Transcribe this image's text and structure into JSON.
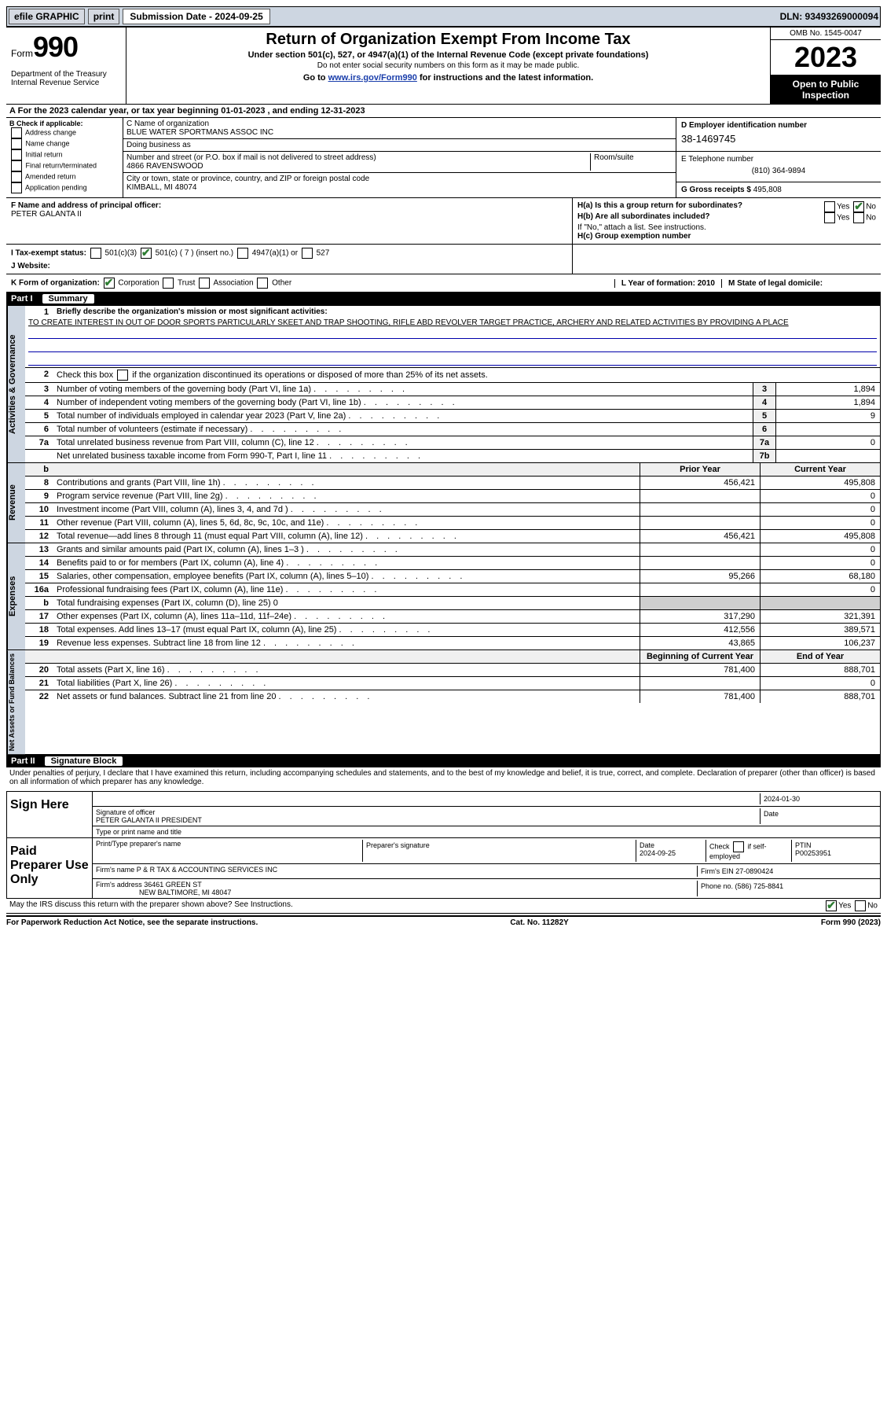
{
  "topbar": {
    "efile": "efile GRAPHIC",
    "print": "print",
    "sub_label": "Submission Date - 2024-09-25",
    "dln": "DLN: 93493269000094"
  },
  "header": {
    "form_label": "Form",
    "form_no": "990",
    "title": "Return of Organization Exempt From Income Tax",
    "sub": "Under section 501(c), 527, or 4947(a)(1) of the Internal Revenue Code (except private foundations)",
    "ssn": "Do not enter social security numbers on this form as it may be made public.",
    "goto_pre": "Go to ",
    "goto_link": "www.irs.gov/Form990",
    "goto_post": " for instructions and the latest information.",
    "dept": "Department of the Treasury\nInternal Revenue Service",
    "omb": "OMB No. 1545-0047",
    "year": "2023",
    "inspect": "Open to Public Inspection"
  },
  "A": {
    "text": "For the 2023 calendar year, or tax year beginning 01-01-2023   , and ending 12-31-2023"
  },
  "B": {
    "hdr": "B Check if applicable:",
    "items": [
      "Address change",
      "Name change",
      "Initial return",
      "Final return/terminated",
      "Amended return",
      "Application pending"
    ]
  },
  "C": {
    "name_lbl": "C Name of organization",
    "name": "BLUE WATER SPORTMANS ASSOC INC",
    "dba_lbl": "Doing business as",
    "dba": "",
    "street_lbl": "Number and street (or P.O. box if mail is not delivered to street address)",
    "street": "4866 RAVENSWOOD",
    "room_lbl": "Room/suite",
    "city_lbl": "City or town, state or province, country, and ZIP or foreign postal code",
    "city": "KIMBALL, MI  48074"
  },
  "D": {
    "lbl": "D Employer identification number",
    "val": "38-1469745"
  },
  "E": {
    "lbl": "E Telephone number",
    "val": "(810) 364-9894"
  },
  "G": {
    "lbl": "G Gross receipts $",
    "val": "495,808"
  },
  "F": {
    "lbl": "F  Name and address of principal officer:",
    "val": "PETER GALANTA II"
  },
  "H": {
    "a_lbl": "H(a)  Is this a group return for subordinates?",
    "b_lbl": "H(b)  Are all subordinates included?",
    "b_note": "If \"No,\" attach a list. See instructions.",
    "c_lbl": "H(c)  Group exemption number ",
    "yes": "Yes",
    "no": "No"
  },
  "I": {
    "lbl": "I   Tax-exempt status:",
    "c3": "501(c)(3)",
    "c7": "501(c) ( 7 ) (insert no.)",
    "a1": "4947(a)(1) or",
    "s527": "527"
  },
  "J": {
    "lbl": "J   Website: ",
    "val": ""
  },
  "K": {
    "lbl": "K Form of organization:",
    "corp": "Corporation",
    "trust": "Trust",
    "assoc": "Association",
    "other": "Other"
  },
  "L": {
    "lbl": "L Year of formation: 2010"
  },
  "M": {
    "lbl": "M State of legal domicile:"
  },
  "part1": {
    "hdr_no": "Part I",
    "hdr_title": "Summary",
    "q1_lbl": "Briefly describe the organization's mission or most significant activities:",
    "q1_txt": "TO CREATE INTEREST IN OUT OF DOOR SPORTS PARTICULARLY SKEET AND TRAP SHOOTING, RIFLE ABD REVOLVER TARGET PRACTICE, ARCHERY AND RELATED ACTIVITIES BY PROVIDING A PLACE",
    "q2": "Check this box      if the organization discontinued its operations or disposed of more than 25% of its net assets.",
    "lines_gov": [
      {
        "n": "3",
        "t": "Number of voting members of the governing body (Part VI, line 1a)",
        "b": "3",
        "v": "1,894"
      },
      {
        "n": "4",
        "t": "Number of independent voting members of the governing body (Part VI, line 1b)",
        "b": "4",
        "v": "1,894"
      },
      {
        "n": "5",
        "t": "Total number of individuals employed in calendar year 2023 (Part V, line 2a)",
        "b": "5",
        "v": "9"
      },
      {
        "n": "6",
        "t": "Total number of volunteers (estimate if necessary)",
        "b": "6",
        "v": ""
      },
      {
        "n": "7a",
        "t": "Total unrelated business revenue from Part VIII, column (C), line 12",
        "b": "7a",
        "v": "0"
      },
      {
        "n": "",
        "t": "Net unrelated business taxable income from Form 990-T, Part I, line 11",
        "b": "7b",
        "v": ""
      }
    ],
    "col_hdr_prior": "Prior Year",
    "col_hdr_curr": "Current Year",
    "lines_rev": [
      {
        "n": "8",
        "t": "Contributions and grants (Part VIII, line 1h)",
        "p": "456,421",
        "c": "495,808"
      },
      {
        "n": "9",
        "t": "Program service revenue (Part VIII, line 2g)",
        "p": "",
        "c": "0"
      },
      {
        "n": "10",
        "t": "Investment income (Part VIII, column (A), lines 3, 4, and 7d )",
        "p": "",
        "c": "0"
      },
      {
        "n": "11",
        "t": "Other revenue (Part VIII, column (A), lines 5, 6d, 8c, 9c, 10c, and 11e)",
        "p": "",
        "c": "0"
      },
      {
        "n": "12",
        "t": "Total revenue—add lines 8 through 11 (must equal Part VIII, column (A), line 12)",
        "p": "456,421",
        "c": "495,808"
      }
    ],
    "lines_exp": [
      {
        "n": "13",
        "t": "Grants and similar amounts paid (Part IX, column (A), lines 1–3 )",
        "p": "",
        "c": "0"
      },
      {
        "n": "14",
        "t": "Benefits paid to or for members (Part IX, column (A), line 4)",
        "p": "",
        "c": "0"
      },
      {
        "n": "15",
        "t": "Salaries, other compensation, employee benefits (Part IX, column (A), lines 5–10)",
        "p": "95,266",
        "c": "68,180"
      },
      {
        "n": "16a",
        "t": "Professional fundraising fees (Part IX, column (A), line 11e)",
        "p": "",
        "c": "0"
      },
      {
        "n": "b",
        "t": "Total fundraising expenses (Part IX, column (D), line 25) 0",
        "p": "grey",
        "c": "grey"
      },
      {
        "n": "17",
        "t": "Other expenses (Part IX, column (A), lines 11a–11d, 11f–24e)",
        "p": "317,290",
        "c": "321,391"
      },
      {
        "n": "18",
        "t": "Total expenses. Add lines 13–17 (must equal Part IX, column (A), line 25)",
        "p": "412,556",
        "c": "389,571"
      },
      {
        "n": "19",
        "t": "Revenue less expenses. Subtract line 18 from line 12",
        "p": "43,865",
        "c": "106,237"
      }
    ],
    "col_hdr_bcy": "Beginning of Current Year",
    "col_hdr_eoy": "End of Year",
    "lines_net": [
      {
        "n": "20",
        "t": "Total assets (Part X, line 16)",
        "p": "781,400",
        "c": "888,701"
      },
      {
        "n": "21",
        "t": "Total liabilities (Part X, line 26)",
        "p": "",
        "c": "0"
      },
      {
        "n": "22",
        "t": "Net assets or fund balances. Subtract line 21 from line 20",
        "p": "781,400",
        "c": "888,701"
      }
    ],
    "side_gov": "Activities & Governance",
    "side_rev": "Revenue",
    "side_exp": "Expenses",
    "side_net": "Net Assets or Fund Balances"
  },
  "part2": {
    "hdr_no": "Part II",
    "hdr_title": "Signature Block",
    "decl": "Under penalties of perjury, I declare that I have examined this return, including accompanying schedules and statements, and to the best of my knowledge and belief, it is true, correct, and complete. Declaration of preparer (other than officer) is based on all information of which preparer has any knowledge.",
    "sign_here": "Sign Here",
    "sig_date": "2024-01-30",
    "sig_lbl": "Signature of officer",
    "sig_name": "PETER GALANTA II PRESIDENT",
    "sig_name_lbl": "Type or print name and title",
    "date_lbl": "Date",
    "paid": "Paid Preparer Use Only",
    "prep_name_lbl": "Print/Type preparer's name",
    "prep_sig_lbl": "Preparer's signature",
    "prep_date_lbl": "Date",
    "prep_date": "2024-09-25",
    "prep_check_lbl": "Check       if self-employed",
    "ptin_lbl": "PTIN",
    "ptin": "P00253951",
    "firm_name_lbl": "Firm's name   ",
    "firm_name": "P & R TAX & ACCOUNTING SERVICES INC",
    "firm_ein_lbl": "Firm's EIN  ",
    "firm_ein": "27-0890424",
    "firm_addr_lbl": "Firm's address ",
    "firm_addr1": "36461 GREEN ST",
    "firm_addr2": "NEW BALTIMORE, MI  48047",
    "firm_phone_lbl": "Phone no. ",
    "firm_phone": "(586) 725-8841",
    "discuss": "May the IRS discuss this return with the preparer shown above? See Instructions."
  },
  "footer": {
    "pra": "For Paperwork Reduction Act Notice, see the separate instructions.",
    "cat": "Cat. No. 11282Y",
    "form": "Form 990 (2023)"
  }
}
